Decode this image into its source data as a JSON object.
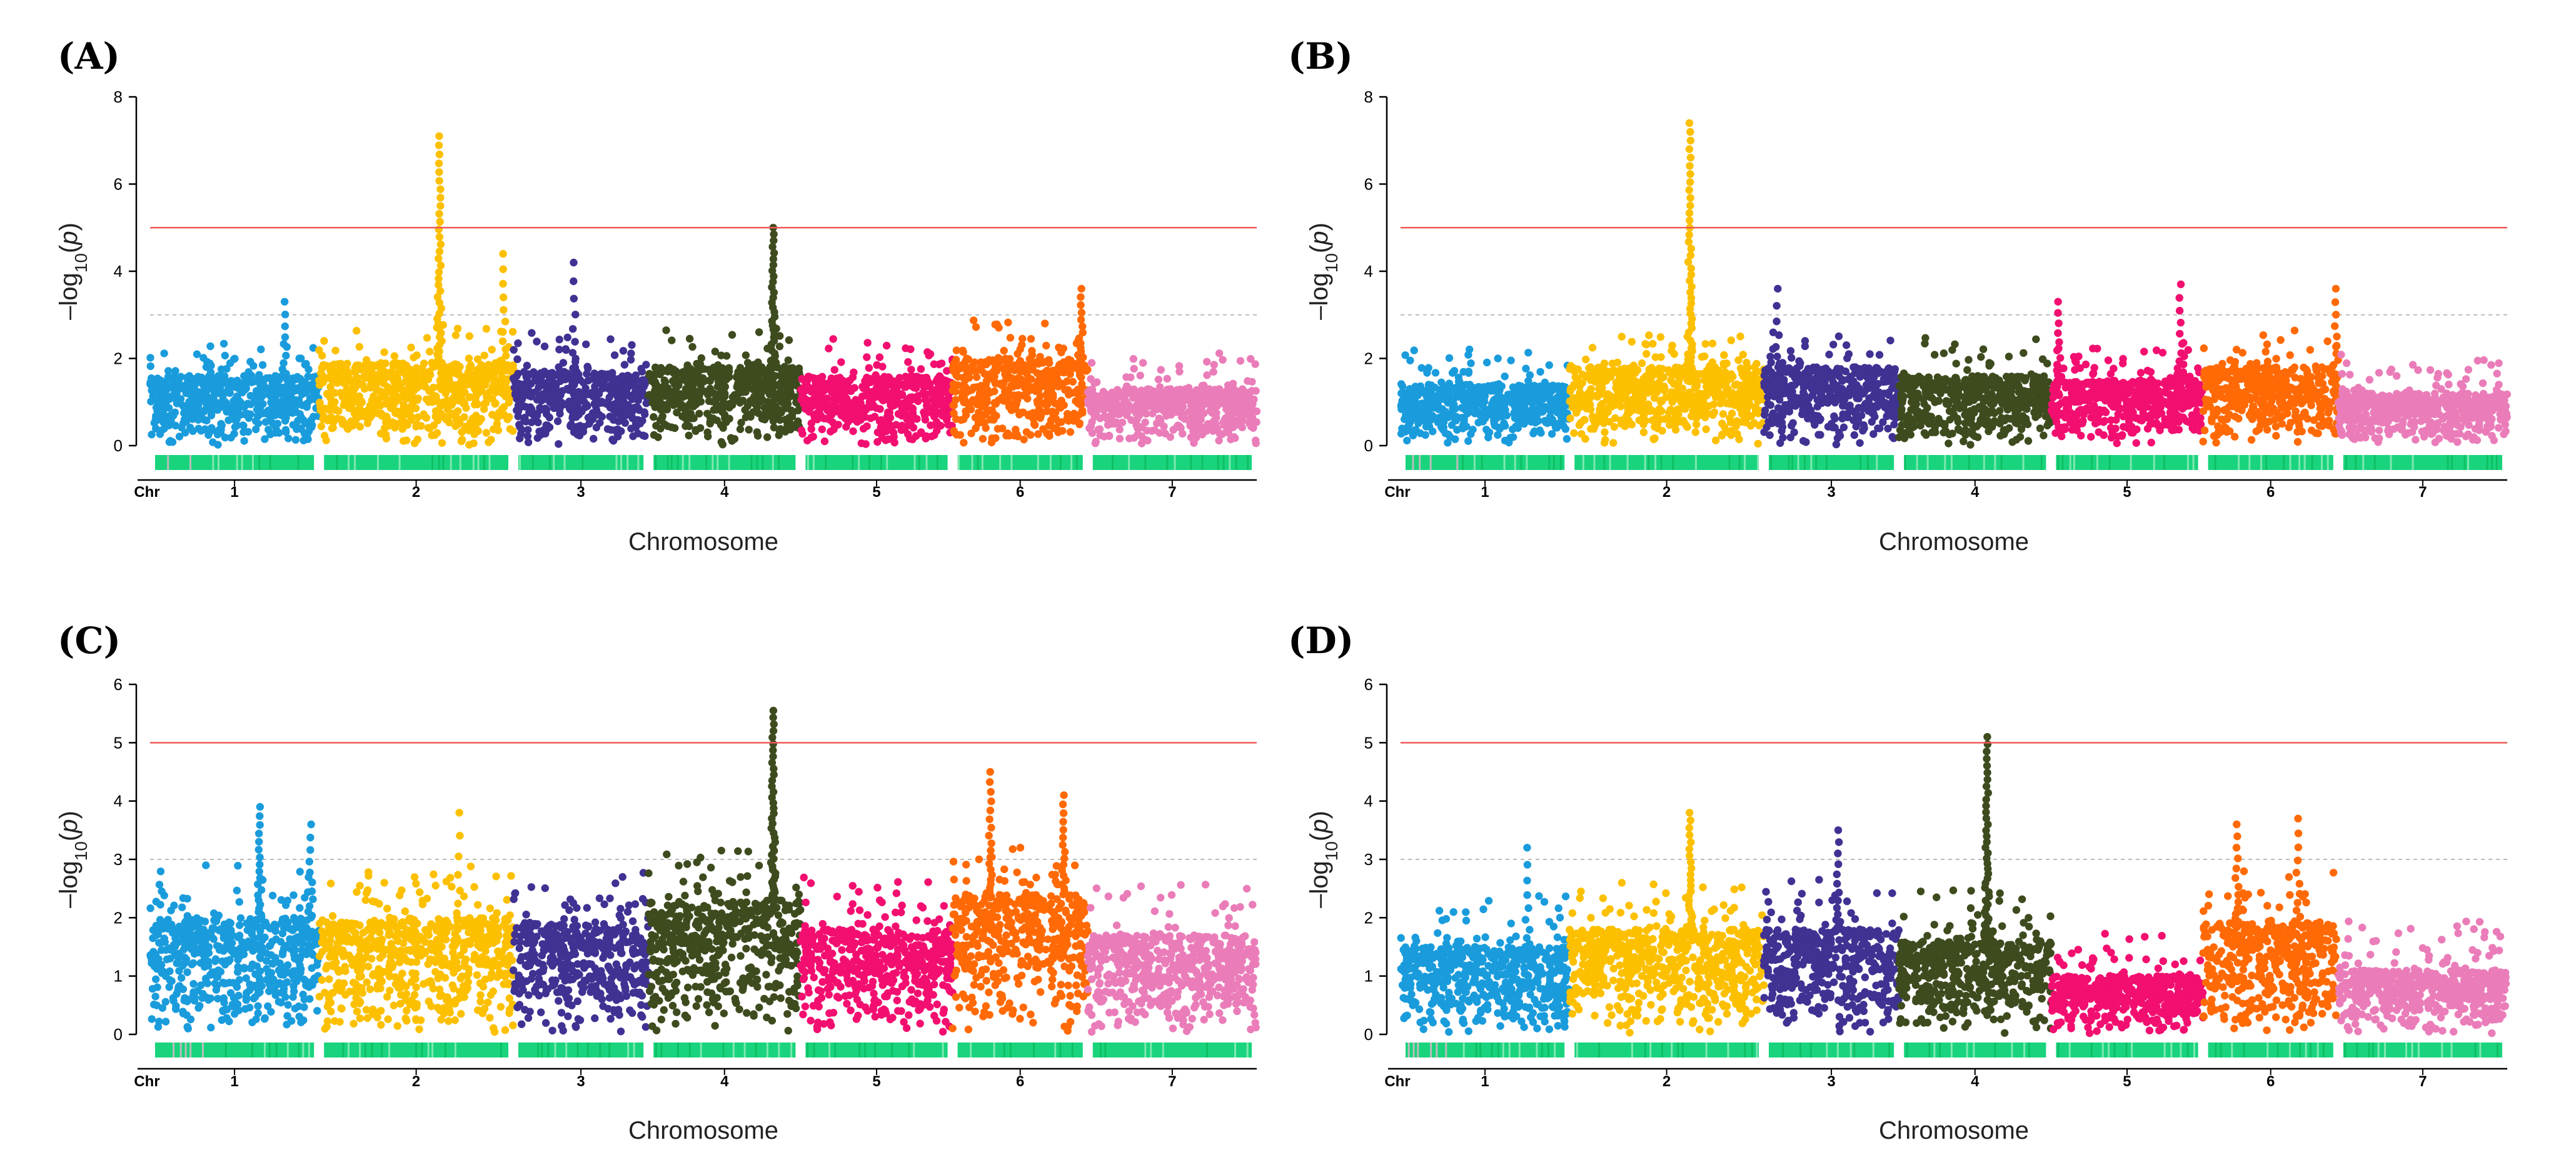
{
  "figure": {
    "panels": [
      "(A)",
      "(B)",
      "(C)",
      "(D)"
    ]
  },
  "chart_data": [
    {
      "panel": "(A)",
      "type": "scatter",
      "subtype": "manhattan",
      "xlabel": "Chromosome",
      "ylabel": "-log10(p)",
      "chr_label": "Chr",
      "chromosomes": [
        "1",
        "2",
        "3",
        "4",
        "5",
        "6",
        "7"
      ],
      "chromosome_extent": [
        [
          0,
          1.0
        ],
        [
          1.0,
          2.15
        ],
        [
          2.15,
          2.95
        ],
        [
          2.95,
          3.85
        ],
        [
          3.85,
          4.75
        ],
        [
          4.75,
          5.55
        ],
        [
          5.55,
          6.55
        ]
      ],
      "colors": [
        "#1a9cdc",
        "#fcc000",
        "#3f3293",
        "#3e4b1e",
        "#f20f70",
        "#ff6a06",
        "#ea7db9"
      ],
      "yticks": [
        0,
        2,
        4,
        6,
        8
      ],
      "ylim": [
        0,
        8
      ],
      "significance_threshold": 5,
      "suggestive_threshold": 3,
      "base_level": [
        1.6,
        1.9,
        1.7,
        1.8,
        1.6,
        2.0,
        1.3
      ],
      "peaks": [
        {
          "chr": 1,
          "pos": 0.8,
          "max": 3.3,
          "n": 10
        },
        {
          "chr": 2,
          "pos": 0.62,
          "max": 7.1,
          "n": 40
        },
        {
          "chr": 2,
          "pos": 0.95,
          "max": 4.4,
          "n": 12
        },
        {
          "chr": 3,
          "pos": 0.45,
          "max": 4.2,
          "n": 10
        },
        {
          "chr": 4,
          "pos": 0.82,
          "max": 5.0,
          "n": 35
        },
        {
          "chr": 6,
          "pos": 0.95,
          "max": 3.6,
          "n": 14
        }
      ]
    },
    {
      "panel": "(B)",
      "type": "scatter",
      "subtype": "manhattan",
      "xlabel": "Chromosome",
      "ylabel": "-log10(p)",
      "chr_label": "Chr",
      "chromosomes": [
        "1",
        "2",
        "3",
        "4",
        "5",
        "6",
        "7"
      ],
      "chromosome_extent": [
        [
          0,
          1.0
        ],
        [
          1.0,
          2.15
        ],
        [
          2.15,
          2.95
        ],
        [
          2.95,
          3.85
        ],
        [
          3.85,
          4.75
        ],
        [
          4.75,
          5.55
        ],
        [
          5.55,
          6.55
        ]
      ],
      "colors": [
        "#1a9cdc",
        "#fcc000",
        "#3f3293",
        "#3e4b1e",
        "#f20f70",
        "#ff6a06",
        "#ea7db9"
      ],
      "yticks": [
        0,
        2,
        4,
        6,
        8
      ],
      "ylim": [
        0,
        8
      ],
      "significance_threshold": 5,
      "suggestive_threshold": 3,
      "base_level": [
        1.4,
        1.8,
        1.8,
        1.6,
        1.5,
        1.8,
        1.2
      ],
      "peaks": [
        {
          "chr": 2,
          "pos": 0.62,
          "max": 7.4,
          "n": 45
        },
        {
          "chr": 3,
          "pos": 0.1,
          "max": 3.6,
          "n": 8
        },
        {
          "chr": 5,
          "pos": 0.05,
          "max": 3.3,
          "n": 12
        },
        {
          "chr": 5,
          "pos": 0.85,
          "max": 3.7,
          "n": 12
        },
        {
          "chr": 6,
          "pos": 0.98,
          "max": 3.6,
          "n": 10
        }
      ]
    },
    {
      "panel": "(C)",
      "type": "scatter",
      "subtype": "manhattan",
      "xlabel": "Chromosome",
      "ylabel": "-log10(p)",
      "chr_label": "Chr",
      "chromosomes": [
        "1",
        "2",
        "3",
        "4",
        "5",
        "6",
        "7"
      ],
      "chromosome_extent": [
        [
          0,
          1.0
        ],
        [
          1.0,
          2.15
        ],
        [
          2.15,
          2.95
        ],
        [
          2.95,
          3.85
        ],
        [
          3.85,
          4.75
        ],
        [
          4.75,
          5.55
        ],
        [
          5.55,
          6.55
        ]
      ],
      "colors": [
        "#1a9cdc",
        "#fcc000",
        "#3f3293",
        "#3e4b1e",
        "#f20f70",
        "#ff6a06",
        "#ea7db9"
      ],
      "yticks": [
        0,
        1,
        2,
        3,
        4,
        5,
        6
      ],
      "ylim": [
        0,
        6
      ],
      "significance_threshold": 5,
      "suggestive_threshold": 3,
      "base_level": [
        2.0,
        2.0,
        1.9,
        2.3,
        1.8,
        2.4,
        1.7
      ],
      "peaks": [
        {
          "chr": 1,
          "pos": 0.65,
          "max": 3.9,
          "n": 20
        },
        {
          "chr": 1,
          "pos": 0.95,
          "max": 3.6,
          "n": 12
        },
        {
          "chr": 2,
          "pos": 0.72,
          "max": 3.8,
          "n": 8
        },
        {
          "chr": 4,
          "pos": 0.82,
          "max": 5.55,
          "n": 45
        },
        {
          "chr": 6,
          "pos": 0.28,
          "max": 4.5,
          "n": 20
        },
        {
          "chr": 6,
          "pos": 0.82,
          "max": 4.1,
          "n": 18
        }
      ]
    },
    {
      "panel": "(D)",
      "type": "scatter",
      "subtype": "manhattan",
      "xlabel": "Chromosome",
      "ylabel": "-log10(p)",
      "chr_label": "Chr",
      "chromosomes": [
        "1",
        "2",
        "3",
        "4",
        "5",
        "6",
        "7"
      ],
      "chromosome_extent": [
        [
          0,
          1.0
        ],
        [
          1.0,
          2.15
        ],
        [
          2.15,
          2.95
        ],
        [
          2.95,
          3.85
        ],
        [
          3.85,
          4.75
        ],
        [
          4.75,
          5.55
        ],
        [
          5.55,
          6.55
        ]
      ],
      "colors": [
        "#1a9cdc",
        "#fcc000",
        "#3f3293",
        "#3e4b1e",
        "#f20f70",
        "#ff6a06",
        "#ea7db9"
      ],
      "yticks": [
        0,
        1,
        2,
        3,
        4,
        5,
        6
      ],
      "ylim": [
        0,
        6
      ],
      "significance_threshold": 5,
      "suggestive_threshold": 3,
      "base_level": [
        1.5,
        1.8,
        1.8,
        1.6,
        1.0,
        1.9,
        1.1
      ],
      "peaks": [
        {
          "chr": 1,
          "pos": 0.75,
          "max": 3.2,
          "n": 10
        },
        {
          "chr": 2,
          "pos": 0.62,
          "max": 3.8,
          "n": 25
        },
        {
          "chr": 3,
          "pos": 0.55,
          "max": 3.5,
          "n": 14
        },
        {
          "chr": 4,
          "pos": 0.58,
          "max": 5.1,
          "n": 45
        },
        {
          "chr": 6,
          "pos": 0.25,
          "max": 3.6,
          "n": 14
        },
        {
          "chr": 6,
          "pos": 0.7,
          "max": 3.7,
          "n": 12
        }
      ]
    }
  ]
}
